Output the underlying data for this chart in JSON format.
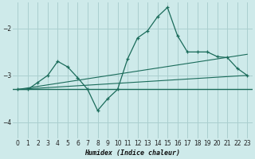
{
  "xlabel": "Humidex (Indice chaleur)",
  "bg_color": "#ceeaea",
  "grid_color": "#aacfcf",
  "line_color": "#1a6b5a",
  "xlim": [
    -0.5,
    23.5
  ],
  "ylim": [
    -4.35,
    -1.45
  ],
  "yticks": [
    -4,
    -3,
    -2
  ],
  "xticks": [
    0,
    1,
    2,
    3,
    4,
    5,
    6,
    7,
    8,
    9,
    10,
    11,
    12,
    13,
    14,
    15,
    16,
    17,
    18,
    19,
    20,
    21,
    22,
    23
  ],
  "series1_x": [
    0,
    1,
    2,
    3,
    4,
    5,
    6,
    7,
    8,
    9,
    10,
    11,
    12,
    13,
    14,
    15,
    16,
    17,
    18,
    19,
    20,
    21,
    22,
    23
  ],
  "series1_y": [
    -3.3,
    -3.3,
    -3.15,
    -3.0,
    -2.7,
    -2.82,
    -3.05,
    -3.3,
    -3.75,
    -3.5,
    -3.3,
    -2.65,
    -2.2,
    -2.05,
    -1.75,
    -1.55,
    -2.15,
    -2.5,
    -2.5,
    -2.5,
    -2.6,
    -2.62,
    -2.85,
    -3.0
  ],
  "series2_x": [
    0,
    23
  ],
  "series2_y": [
    -3.3,
    -3.0
  ],
  "series3_x": [
    0,
    23
  ],
  "series3_y": [
    -3.3,
    -2.55
  ],
  "flat_y": -3.3,
  "flat_x_end": 23
}
